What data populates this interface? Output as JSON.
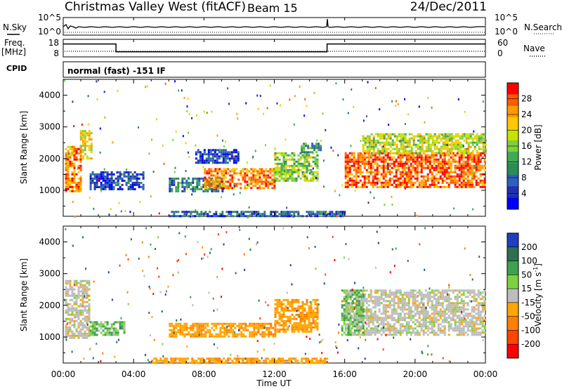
{
  "header": {
    "title": "Christmas Valley West (fitACF)",
    "beam": "Beam 15",
    "date": "24/Dec/2011"
  },
  "strips": {
    "nsky": {
      "left_label": "N.Sky",
      "right_label": "N.Search",
      "left_ticks": [
        "10^5",
        "10^0"
      ],
      "right_ticks": [
        "10^5",
        "10^0"
      ]
    },
    "freq": {
      "left_label_1": "Freq.",
      "left_label_2": "[MHz]",
      "right_label": "Nave",
      "left_ticks": [
        "18",
        "8"
      ],
      "right_ticks": [
        "60",
        "0"
      ],
      "frequency_mhz": {
        "x_hours": [
          0,
          3,
          3,
          15,
          15,
          24
        ],
        "values": [
          17,
          17,
          10,
          10,
          17,
          17
        ]
      }
    },
    "cpid": {
      "label": "CPID",
      "text": "normal (fast) -151 IF"
    }
  },
  "chart_data": [
    {
      "type": "heatmap",
      "name": "power",
      "xlabel": "",
      "ylabel": "Slant Range [km]",
      "xlim": [
        0,
        24
      ],
      "ylim": [
        180,
        4500
      ],
      "yticks": [
        1000,
        2000,
        3000,
        4000
      ],
      "colorbar": {
        "label": "Power [dB]",
        "ticks": [
          "28",
          "24",
          "20",
          "16",
          "12",
          "8",
          "4"
        ],
        "colors": [
          "#ff0000",
          "#ff5a00",
          "#ff9a00",
          "#ffc800",
          "#c8e100",
          "#7fcf3f",
          "#3faa55",
          "#2e8b57",
          "#2f5fbf",
          "#2030b0",
          "#0000ff"
        ]
      },
      "regions": [
        {
          "x": [
            0.1,
            0.95
          ],
          "y": [
            1000,
            2400
          ],
          "value": 24
        },
        {
          "x": [
            0.95,
            1.6
          ],
          "y": [
            2000,
            2900
          ],
          "value": 20
        },
        {
          "x": [
            1.5,
            4.5
          ],
          "y": [
            1050,
            1600
          ],
          "value": 6
        },
        {
          "x": [
            6.0,
            9.0
          ],
          "y": [
            1000,
            1400
          ],
          "value": 10
        },
        {
          "x": [
            8.0,
            12.0
          ],
          "y": [
            1050,
            1700
          ],
          "value": 24
        },
        {
          "x": [
            12.0,
            14.5
          ],
          "y": [
            1300,
            2200
          ],
          "value": 16
        },
        {
          "x": [
            7.5,
            10.0
          ],
          "y": [
            1900,
            2300
          ],
          "value": 6
        },
        {
          "x": [
            13.5,
            14.6
          ],
          "y": [
            2200,
            2500
          ],
          "value": 12
        },
        {
          "x": [
            16.0,
            24.0
          ],
          "y": [
            1100,
            2200
          ],
          "value": 26
        },
        {
          "x": [
            17.0,
            24.0
          ],
          "y": [
            2200,
            2800
          ],
          "value": 18
        },
        {
          "x": [
            6.0,
            16.0
          ],
          "y": [
            200,
            350
          ],
          "value": 8
        }
      ]
    },
    {
      "type": "heatmap",
      "name": "velocity",
      "xlabel": "Time UT",
      "ylabel": "Slant Range [km]",
      "xlim": [
        0,
        24
      ],
      "xticks": [
        "00:00",
        "04:00",
        "08:00",
        "12:00",
        "16:00",
        "20:00",
        "00:00"
      ],
      "ylim": [
        180,
        4500
      ],
      "yticks": [
        1000,
        2000,
        3000,
        4000
      ],
      "colorbar": {
        "label": "Velocity [m s",
        "label_sup": "-1",
        "label_end": "]",
        "ticks": [
          "200",
          "100",
          "50",
          "15",
          "-15",
          "-50",
          "-100",
          "-200"
        ],
        "colors": [
          "#1f3fbf",
          "#2e6f4f",
          "#3fa050",
          "#7fd23f",
          "#bdbdbd",
          "#ffa500",
          "#ff7f00",
          "#ff4500",
          "#ff0000"
        ]
      },
      "regions": [
        {
          "x": [
            0.1,
            1.5
          ],
          "y": [
            1000,
            2800
          ],
          "value": 0
        },
        {
          "x": [
            1.5,
            3.5
          ],
          "y": [
            1100,
            1500
          ],
          "value": 30
        },
        {
          "x": [
            6.0,
            12.0
          ],
          "y": [
            1000,
            1450
          ],
          "value": -40
        },
        {
          "x": [
            12.0,
            14.5
          ],
          "y": [
            1200,
            2200
          ],
          "value": -40
        },
        {
          "x": [
            16.0,
            24.0
          ],
          "y": [
            1100,
            2500
          ],
          "value": 0
        },
        {
          "x": [
            15.8,
            17.0
          ],
          "y": [
            1100,
            2500
          ],
          "value": 30
        },
        {
          "x": [
            5.0,
            15.0
          ],
          "y": [
            200,
            350
          ],
          "value": -40
        }
      ]
    }
  ]
}
